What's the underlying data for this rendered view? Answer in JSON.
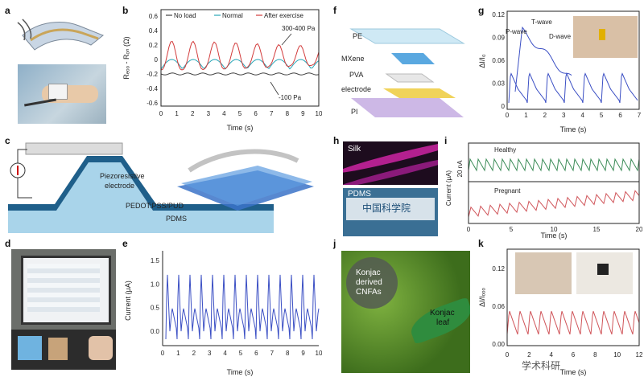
{
  "panels": {
    "a": "a",
    "b": "b",
    "c": "c",
    "d": "d",
    "e": "e",
    "f": "f",
    "g": "g",
    "h": "h",
    "i": "i",
    "j": "j",
    "k": "k"
  },
  "b": {
    "ylabel": "Rₑₒₒ - Rₒₙ (Ω)",
    "xlabel": "Time (s)",
    "legend": [
      "No load",
      "Normal",
      "After exercise"
    ],
    "annot_high": "300-400 Pa",
    "annot_low": "-100 Pa",
    "yticks": [
      "0.6",
      "0.4",
      "0.2",
      "0",
      "-0.2",
      "-0.4",
      "-0.6"
    ],
    "xticks": [
      "0",
      "1",
      "2",
      "3",
      "4",
      "5",
      "6",
      "7",
      "8",
      "9",
      "10"
    ]
  },
  "c": {
    "piezo": "Piezoresistive",
    "electrode": "electrode",
    "pedot": "PEDOT:PSS/PUD",
    "pdms": "PDMS"
  },
  "e": {
    "ylabel": "Current (μA)",
    "xlabel": "Time (s)",
    "yticks": [
      "1.5",
      "1.0",
      "0.5",
      "0.0"
    ],
    "xticks": [
      "0",
      "1",
      "2",
      "3",
      "4",
      "5",
      "6",
      "7",
      "8",
      "9",
      "10"
    ]
  },
  "f": {
    "layers": [
      "PE",
      "MXene",
      "PVA",
      "electrode",
      "PI"
    ]
  },
  "g": {
    "ylabel": "ΔI/I₀",
    "xlabel": "Time (s)",
    "p_wave": "P-wave",
    "t_wave": "T-wave",
    "d_wave": "D-wave",
    "yticks": [
      "0.12",
      "0.09",
      "0.06",
      "0.03",
      "0"
    ],
    "xticks": [
      "0",
      "1",
      "2",
      "3",
      "4",
      "5",
      "6",
      "7"
    ]
  },
  "h": {
    "silk": "Silk",
    "pdms": "PDMS",
    "badge": "中国科学院"
  },
  "i": {
    "healthy": "Healthy",
    "pregnant": "Pregnant",
    "scale": "20 nA",
    "ylabel": "Current (μA)",
    "xlabel": "Time (s)",
    "xticks": [
      "0",
      "5",
      "10",
      "15",
      "20"
    ]
  },
  "j": {
    "konjac_cnfa": "Konjac\nderived\nCNFAs",
    "konjac_leaf": "Konjac\nleaf",
    "cnfa_lines": [
      "Konjac",
      "derived",
      "CNFAs"
    ],
    "leaf_lines": [
      "Konjac",
      "leaf"
    ]
  },
  "k": {
    "ylabel": "ΔI/Iₒₒₒ",
    "xlabel": "Time (s)",
    "yticks": [
      "0.12",
      "0.06",
      "0.00"
    ],
    "xticks": [
      "0",
      "2",
      "4",
      "6",
      "8",
      "10",
      "12"
    ]
  },
  "watermark": "学术科研"
}
